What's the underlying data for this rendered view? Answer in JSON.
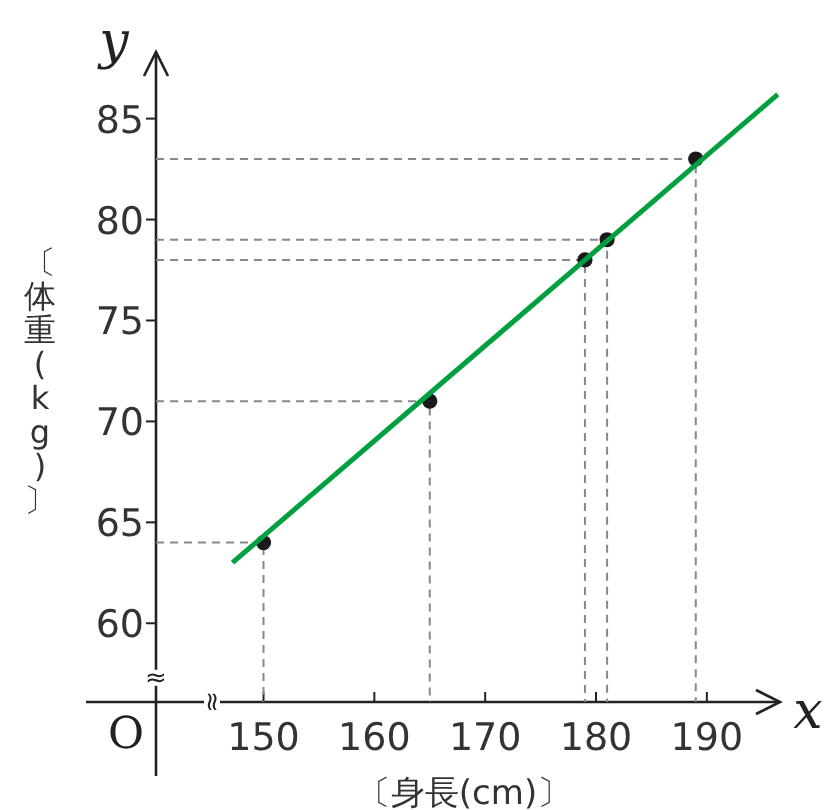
{
  "chart_data": {
    "type": "scatter",
    "xlabel": "〔身長(cm)〕",
    "ylabel": "〔体重(kg)〕",
    "xlim": [
      140.3,
      196.6
    ],
    "ylim": [
      56.1,
      88.3
    ],
    "xticks": [
      150,
      160,
      170,
      180,
      190
    ],
    "yticks": [
      60,
      65,
      70,
      75,
      80,
      85
    ],
    "grid": false,
    "annotations": [
      "x",
      "y",
      "O",
      "≈",
      "≈"
    ],
    "series": [
      {
        "type": "line",
        "color": "#888888",
        "line_style": "dashed",
        "marker": "none",
        "x": [
          140.3,
          150,
          150
        ],
        "values": [
          64,
          64,
          56.1
        ]
      },
      {
        "type": "line",
        "color": "#888888",
        "line_style": "dashed",
        "marker": "none",
        "x": [
          140.3,
          165,
          165
        ],
        "values": [
          71,
          71,
          56.1
        ]
      },
      {
        "type": "line",
        "color": "#888888",
        "line_style": "dashed",
        "marker": "none",
        "x": [
          140.3,
          179,
          179
        ],
        "values": [
          78,
          78,
          56.1
        ]
      },
      {
        "type": "line",
        "color": "#888888",
        "line_style": "dashed",
        "marker": "none",
        "x": [
          140.3,
          181,
          181
        ],
        "values": [
          79,
          79,
          56.1
        ]
      },
      {
        "type": "line",
        "color": "#888888",
        "line_style": "dashed",
        "marker": "none",
        "x": [
          140.3,
          189,
          189
        ],
        "values": [
          83,
          83,
          56.1
        ]
      },
      {
        "type": "scatter",
        "color": "#1a1a1a",
        "marker": "circle",
        "x": [
          150,
          165,
          179,
          181,
          189
        ],
        "values": [
          64,
          71,
          78,
          79,
          83
        ]
      },
      {
        "type": "line",
        "color": "#00a040",
        "marker": "none",
        "x": [
          147.2,
          196.4
        ],
        "values": [
          63.0,
          86.2
        ]
      }
    ]
  }
}
